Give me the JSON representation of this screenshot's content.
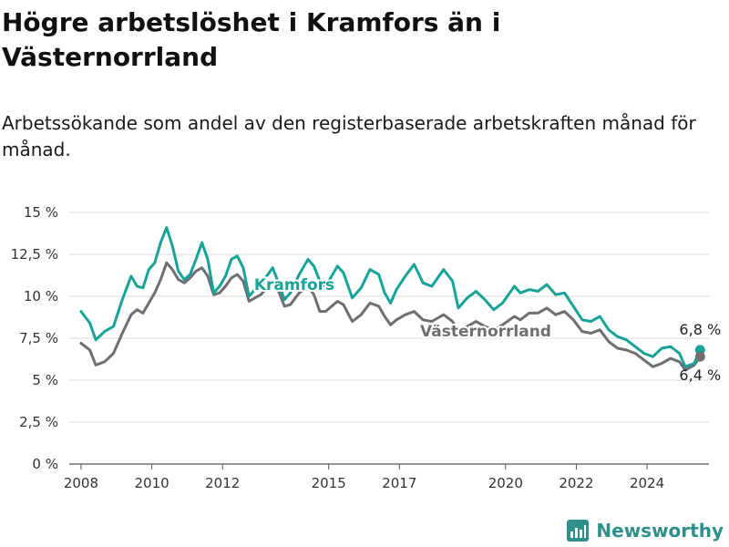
{
  "title": "Högre arbetslöshet i Kramfors än i Västernorrland",
  "subtitle": "Arbetssökande som andel av den registerbaserade arbetskraften månad för månad.",
  "brand": {
    "name": "Newsworthy",
    "icon": "bar-chart-logo-icon",
    "color": "#2f8f8a"
  },
  "chart_data": {
    "type": "line",
    "y_tick_labels": [
      "0 %",
      "2,5 %",
      "5 %",
      "7,5 %",
      "10 %",
      "12,5 %",
      "15 %"
    ],
    "y_ticks": [
      0,
      2.5,
      5,
      7.5,
      10,
      12.5,
      15
    ],
    "ylim": [
      0,
      15
    ],
    "x_ticks": [
      2008,
      2010,
      2012,
      2015,
      2017,
      2020,
      2022,
      2024
    ],
    "x_tick_labels": [
      "2008",
      "2010",
      "2012",
      "2015",
      "2017",
      "2020",
      "2022",
      "2024"
    ],
    "xlim": [
      "2007-09",
      "2025-10"
    ],
    "grid": "horizontal",
    "series": [
      {
        "name": "Kramfors",
        "color": "#17a398",
        "end_label": "6,8 %",
        "points": [
          [
            "2008-01",
            9.1
          ],
          [
            "2008-04",
            8.4
          ],
          [
            "2008-06",
            7.4
          ],
          [
            "2008-09",
            7.9
          ],
          [
            "2008-12",
            8.2
          ],
          [
            "2009-03",
            9.8
          ],
          [
            "2009-06",
            11.2
          ],
          [
            "2009-08",
            10.6
          ],
          [
            "2009-10",
            10.5
          ],
          [
            "2009-12",
            11.6
          ],
          [
            "2010-02",
            12.0
          ],
          [
            "2010-04",
            13.2
          ],
          [
            "2010-06",
            14.1
          ],
          [
            "2010-08",
            13.0
          ],
          [
            "2010-10",
            11.5
          ],
          [
            "2010-12",
            11.0
          ],
          [
            "2011-02",
            11.3
          ],
          [
            "2011-04",
            12.2
          ],
          [
            "2011-06",
            13.2
          ],
          [
            "2011-08",
            12.2
          ],
          [
            "2011-10",
            10.2
          ],
          [
            "2011-12",
            10.6
          ],
          [
            "2012-02",
            11.2
          ],
          [
            "2012-04",
            12.2
          ],
          [
            "2012-06",
            12.4
          ],
          [
            "2012-08",
            11.7
          ],
          [
            "2012-10",
            10.0
          ],
          [
            "2012-12",
            10.4
          ],
          [
            "2013-02",
            10.6
          ],
          [
            "2013-04",
            11.2
          ],
          [
            "2013-06",
            11.7
          ],
          [
            "2013-08",
            10.8
          ],
          [
            "2013-10",
            9.8
          ],
          [
            "2013-12",
            10.2
          ],
          [
            "2014-03",
            11.3
          ],
          [
            "2014-06",
            12.2
          ],
          [
            "2014-08",
            11.8
          ],
          [
            "2014-10",
            10.9
          ],
          [
            "2014-12",
            10.6
          ],
          [
            "2015-02",
            11.2
          ],
          [
            "2015-04",
            11.8
          ],
          [
            "2015-06",
            11.4
          ],
          [
            "2015-09",
            9.9
          ],
          [
            "2015-12",
            10.5
          ],
          [
            "2016-03",
            11.6
          ],
          [
            "2016-06",
            11.3
          ],
          [
            "2016-08",
            10.2
          ],
          [
            "2016-10",
            9.6
          ],
          [
            "2016-12",
            10.4
          ],
          [
            "2017-03",
            11.2
          ],
          [
            "2017-06",
            11.9
          ],
          [
            "2017-09",
            10.8
          ],
          [
            "2017-12",
            10.6
          ],
          [
            "2018-04",
            11.6
          ],
          [
            "2018-07",
            10.9
          ],
          [
            "2018-09",
            9.3
          ],
          [
            "2018-12",
            9.9
          ],
          [
            "2019-03",
            10.3
          ],
          [
            "2019-06",
            9.8
          ],
          [
            "2019-09",
            9.2
          ],
          [
            "2019-12",
            9.6
          ],
          [
            "2020-04",
            10.6
          ],
          [
            "2020-06",
            10.2
          ],
          [
            "2020-09",
            10.4
          ],
          [
            "2020-12",
            10.3
          ],
          [
            "2021-03",
            10.7
          ],
          [
            "2021-06",
            10.1
          ],
          [
            "2021-09",
            10.2
          ],
          [
            "2021-12",
            9.4
          ],
          [
            "2022-03",
            8.6
          ],
          [
            "2022-06",
            8.5
          ],
          [
            "2022-09",
            8.8
          ],
          [
            "2022-12",
            8.0
          ],
          [
            "2023-03",
            7.6
          ],
          [
            "2023-06",
            7.4
          ],
          [
            "2023-09",
            7.0
          ],
          [
            "2023-12",
            6.6
          ],
          [
            "2024-03",
            6.4
          ],
          [
            "2024-06",
            6.9
          ],
          [
            "2024-09",
            7.0
          ],
          [
            "2024-12",
            6.6
          ],
          [
            "2025-02",
            5.8
          ],
          [
            "2025-05",
            6.0
          ],
          [
            "2025-07",
            6.8
          ]
        ]
      },
      {
        "name": "Västernorrland",
        "color": "#6e6e73",
        "end_label": "6,4 %",
        "points": [
          [
            "2008-01",
            7.2
          ],
          [
            "2008-04",
            6.8
          ],
          [
            "2008-06",
            5.9
          ],
          [
            "2008-09",
            6.1
          ],
          [
            "2008-12",
            6.6
          ],
          [
            "2009-03",
            7.8
          ],
          [
            "2009-06",
            8.9
          ],
          [
            "2009-08",
            9.2
          ],
          [
            "2009-10",
            9.0
          ],
          [
            "2009-12",
            9.6
          ],
          [
            "2010-02",
            10.2
          ],
          [
            "2010-04",
            11.0
          ],
          [
            "2010-06",
            12.0
          ],
          [
            "2010-08",
            11.6
          ],
          [
            "2010-10",
            11.0
          ],
          [
            "2010-12",
            10.8
          ],
          [
            "2011-02",
            11.1
          ],
          [
            "2011-04",
            11.5
          ],
          [
            "2011-06",
            11.7
          ],
          [
            "2011-08",
            11.2
          ],
          [
            "2011-10",
            10.1
          ],
          [
            "2011-12",
            10.2
          ],
          [
            "2012-02",
            10.6
          ],
          [
            "2012-04",
            11.1
          ],
          [
            "2012-06",
            11.3
          ],
          [
            "2012-08",
            10.9
          ],
          [
            "2012-10",
            9.7
          ],
          [
            "2012-12",
            9.9
          ],
          [
            "2013-02",
            10.1
          ],
          [
            "2013-04",
            10.5
          ],
          [
            "2013-06",
            10.9
          ],
          [
            "2013-08",
            10.3
          ],
          [
            "2013-10",
            9.4
          ],
          [
            "2013-12",
            9.5
          ],
          [
            "2014-03",
            10.2
          ],
          [
            "2014-06",
            10.6
          ],
          [
            "2014-08",
            10.1
          ],
          [
            "2014-10",
            9.1
          ],
          [
            "2014-12",
            9.1
          ],
          [
            "2015-02",
            9.4
          ],
          [
            "2015-04",
            9.7
          ],
          [
            "2015-06",
            9.5
          ],
          [
            "2015-09",
            8.5
          ],
          [
            "2015-12",
            8.9
          ],
          [
            "2016-03",
            9.6
          ],
          [
            "2016-06",
            9.4
          ],
          [
            "2016-08",
            8.8
          ],
          [
            "2016-10",
            8.3
          ],
          [
            "2016-12",
            8.6
          ],
          [
            "2017-03",
            8.9
          ],
          [
            "2017-06",
            9.1
          ],
          [
            "2017-09",
            8.6
          ],
          [
            "2017-12",
            8.5
          ],
          [
            "2018-04",
            8.9
          ],
          [
            "2018-07",
            8.5
          ],
          [
            "2018-09",
            7.9
          ],
          [
            "2018-12",
            8.2
          ],
          [
            "2019-03",
            8.5
          ],
          [
            "2019-06",
            8.2
          ],
          [
            "2019-09",
            8.0
          ],
          [
            "2019-12",
            8.3
          ],
          [
            "2020-04",
            8.8
          ],
          [
            "2020-06",
            8.6
          ],
          [
            "2020-09",
            9.0
          ],
          [
            "2020-12",
            9.0
          ],
          [
            "2021-03",
            9.3
          ],
          [
            "2021-06",
            8.9
          ],
          [
            "2021-09",
            9.1
          ],
          [
            "2021-12",
            8.6
          ],
          [
            "2022-03",
            7.9
          ],
          [
            "2022-06",
            7.8
          ],
          [
            "2022-09",
            8.0
          ],
          [
            "2022-12",
            7.3
          ],
          [
            "2023-03",
            6.9
          ],
          [
            "2023-06",
            6.8
          ],
          [
            "2023-09",
            6.6
          ],
          [
            "2023-12",
            6.2
          ],
          [
            "2024-03",
            5.8
          ],
          [
            "2024-06",
            6.0
          ],
          [
            "2024-09",
            6.3
          ],
          [
            "2024-12",
            6.1
          ],
          [
            "2025-02",
            5.6
          ],
          [
            "2025-05",
            5.9
          ],
          [
            "2025-07",
            6.4
          ]
        ]
      }
    ]
  }
}
